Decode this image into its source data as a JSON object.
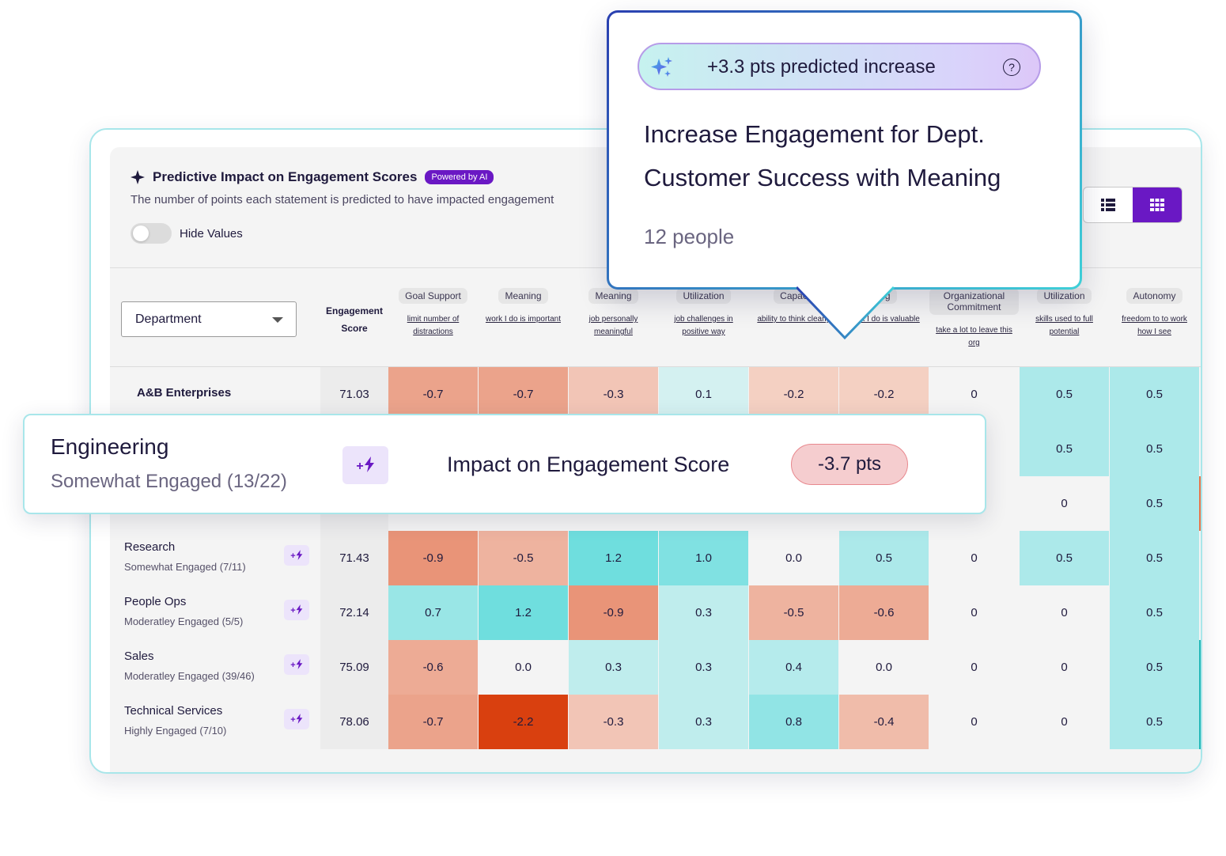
{
  "panel": {
    "title": "Predictive Impact on Engagement Scores",
    "badge": "Powered by AI",
    "subtitle": "The number of points each statement is predicted to have impacted engagement",
    "toggle_label": "Hide Values",
    "view_icons": [
      "list-view-icon",
      "grid-view-icon"
    ]
  },
  "table": {
    "group_select": "Department",
    "score_header": [
      "Engagement",
      "Score"
    ],
    "columns": [
      {
        "category": "Goal Support",
        "statement": "limit number of distractions"
      },
      {
        "category": "Meaning",
        "statement": "work I do is important"
      },
      {
        "category": "Meaning",
        "statement": "job personally meaningful"
      },
      {
        "category": "Utilization",
        "statement": "job challenges in positive way"
      },
      {
        "category": "Capac",
        "statement": "ability to think clearly"
      },
      {
        "category": "ing",
        "statement": "work I do is valuable"
      },
      {
        "category": "Organizational Commitment",
        "statement": "take a lot to leave this org"
      },
      {
        "category": "Utilization",
        "statement": "skills used to full potential"
      },
      {
        "category": "Autonomy",
        "statement": "freedom to to work how I see"
      }
    ],
    "rows": [
      {
        "name": "A&B Enterprises",
        "sub": "",
        "score": "71.03",
        "values": [
          "-0.7",
          "-0.7",
          "-0.3",
          "0.1",
          "-0.2",
          "-0.2",
          "0",
          "0.5",
          "0.5"
        ]
      },
      {
        "name": "",
        "sub": "",
        "score": "",
        "values": [
          "",
          "",
          "",
          "",
          "",
          "",
          "",
          "0.5",
          "0.5"
        ]
      },
      {
        "name": "",
        "sub": "",
        "score": "",
        "values": [
          "",
          "",
          "",
          "",
          "",
          "",
          "",
          "0",
          "0.5"
        ]
      },
      {
        "name": "Research",
        "sub": "Somewhat Engaged (7/11)",
        "score": "71.43",
        "values": [
          "-0.9",
          "-0.5",
          "1.2",
          "1.0",
          "0.0",
          "0.5",
          "0",
          "0.5",
          "0.5"
        ]
      },
      {
        "name": "People Ops",
        "sub": "Moderatley Engaged (5/5)",
        "score": "72.14",
        "values": [
          "0.7",
          "1.2",
          "-0.9",
          "0.3",
          "-0.5",
          "-0.6",
          "0",
          "0",
          "0.5"
        ]
      },
      {
        "name": "Sales",
        "sub": "Moderatley Engaged (39/46)",
        "score": "75.09",
        "values": [
          "-0.6",
          "0.0",
          "0.3",
          "0.3",
          "0.4",
          "0.0",
          "0",
          "0",
          "0.5"
        ]
      },
      {
        "name": "Technical Services",
        "sub": "Highly Engaged (7/10)",
        "score": "78.06",
        "values": [
          "-0.7",
          "-2.2",
          "-0.3",
          "0.3",
          "0.8",
          "-0.4",
          "0",
          "0",
          "0.5"
        ]
      }
    ],
    "row_action_icon": "plus-bolt-icon"
  },
  "engineering_card": {
    "name": "Engineering",
    "status": "Somewhat Engaged (13/22)",
    "impact_label": "Impact on Engagement Score",
    "impact_value": "-3.7 pts"
  },
  "popup": {
    "pill_text": "+3.3 pts predicted increase",
    "help": "?",
    "title": "Increase Engagement for  Dept. Customer Success with Meaning",
    "people": "12 people"
  },
  "colors": {
    "accent": "#6a18c4",
    "teal_border": "#a8e6ea",
    "neg_strong": "#d9400f",
    "pos_strong": "#22cfd0"
  }
}
